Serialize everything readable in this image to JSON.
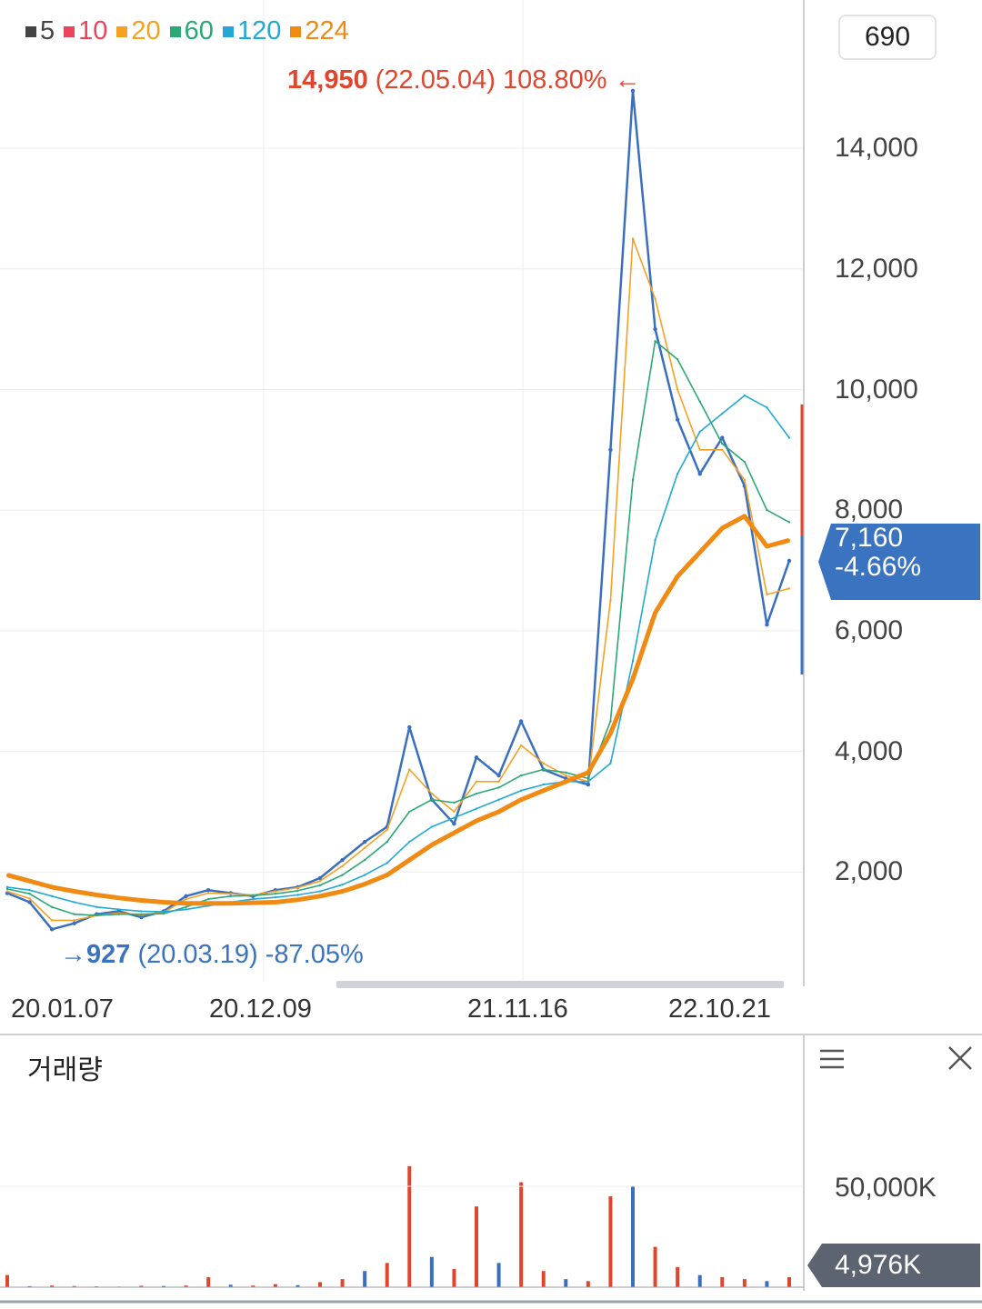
{
  "legend": [
    {
      "label": "5",
      "color": "#444444"
    },
    {
      "label": "10",
      "color": "#e8455a"
    },
    {
      "label": "20",
      "color": "#f5a123"
    },
    {
      "label": "60",
      "color": "#2aa876"
    },
    {
      "label": "120",
      "color": "#22a8d6"
    },
    {
      "label": "224",
      "color": "#f08a12"
    }
  ],
  "count_box": "690",
  "high_annotation": {
    "value": "14,950",
    "date": "(22.05.04)",
    "pct": "108.80%",
    "arrow": "←",
    "color": "#e0452e"
  },
  "low_annotation": {
    "arrow": "→",
    "value": "927",
    "date": "(20.03.19)",
    "pct": "-87.05%",
    "color": "#3a74c1"
  },
  "price_tag": {
    "price": "7,160",
    "change": "-4.66%"
  },
  "volume_panel": {
    "title": "거래량",
    "tick": "50,000K",
    "tag": "4,976K"
  },
  "chart_data": {
    "type": "line",
    "title": "",
    "xlabel": "",
    "ylabel": "",
    "x_tick_labels": [
      "20.01.07",
      "20.12.09",
      "21.11.16",
      "22.10.21"
    ],
    "y_tick_labels": [
      "14,000",
      "12,000",
      "10,000",
      "8,000",
      "6,000",
      "4,000",
      "2,000"
    ],
    "ylim": [
      0,
      15600
    ],
    "grid": true,
    "x": [
      "20.01",
      "20.02",
      "20.03",
      "20.04",
      "20.05",
      "20.06",
      "20.07",
      "20.08",
      "20.09",
      "20.10",
      "20.11",
      "20.12",
      "21.01",
      "21.02",
      "21.03",
      "21.04",
      "21.05",
      "21.06",
      "21.07",
      "21.08",
      "21.09",
      "21.10",
      "21.11",
      "21.12",
      "22.01",
      "22.02",
      "22.03",
      "22.04",
      "22.05",
      "22.06",
      "22.07",
      "22.08",
      "22.09",
      "22.10",
      "22.11",
      "22.12"
    ],
    "series": [
      {
        "name": "5",
        "color": "#3a6fc0",
        "values": [
          1650,
          1500,
          1050,
          1150,
          1300,
          1350,
          1250,
          1350,
          1600,
          1700,
          1650,
          1600,
          1700,
          1750,
          1900,
          2200,
          2500,
          2750,
          4400,
          3200,
          2800,
          3900,
          3600,
          4500,
          3700,
          3550,
          3450,
          9000,
          14950,
          11000,
          9500,
          8600,
          9200,
          8400,
          6100,
          7160
        ]
      },
      {
        "name": "20",
        "color": "#f5a123",
        "values": [
          1680,
          1560,
          1200,
          1200,
          1280,
          1320,
          1290,
          1330,
          1550,
          1650,
          1640,
          1620,
          1680,
          1740,
          1850,
          2100,
          2400,
          2700,
          3700,
          3300,
          3000,
          3500,
          3500,
          4100,
          3800,
          3600,
          3500,
          6500,
          12500,
          11500,
          10000,
          9000,
          9000,
          8500,
          6600,
          6700
        ]
      },
      {
        "name": "60",
        "color": "#2aa876",
        "values": [
          1720,
          1640,
          1420,
          1300,
          1280,
          1300,
          1300,
          1310,
          1420,
          1550,
          1600,
          1610,
          1640,
          1690,
          1780,
          1950,
          2200,
          2500,
          3000,
          3200,
          3150,
          3300,
          3400,
          3600,
          3700,
          3650,
          3550,
          4500,
          8500,
          10800,
          10500,
          9800,
          9100,
          8800,
          8000,
          7800
        ]
      },
      {
        "name": "120",
        "color": "#22a8d6",
        "values": [
          1750,
          1700,
          1600,
          1500,
          1420,
          1380,
          1350,
          1340,
          1380,
          1440,
          1500,
          1550,
          1580,
          1620,
          1680,
          1790,
          1950,
          2150,
          2500,
          2750,
          2900,
          3050,
          3200,
          3350,
          3450,
          3500,
          3500,
          3800,
          5500,
          7500,
          8600,
          9300,
          9600,
          9900,
          9700,
          9200
        ]
      },
      {
        "name": "224",
        "color": "#f08a12",
        "values": [
          1950,
          1850,
          1750,
          1680,
          1620,
          1570,
          1530,
          1500,
          1480,
          1480,
          1480,
          1490,
          1500,
          1540,
          1600,
          1680,
          1800,
          1950,
          2200,
          2450,
          2650,
          2850,
          3000,
          3200,
          3350,
          3500,
          3650,
          4300,
          5200,
          6300,
          6900,
          7300,
          7700,
          7900,
          7400,
          7500
        ]
      }
    ],
    "volume": {
      "ylabel": "",
      "tick_labels": [
        "50,000K"
      ],
      "values_k": [
        6000,
        500,
        800,
        600,
        400,
        300,
        700,
        600,
        800,
        5000,
        1200,
        800,
        1500,
        1000,
        2500,
        4000,
        8000,
        12000,
        60000,
        15000,
        9000,
        40000,
        12000,
        52000,
        8000,
        4000,
        3000,
        45000,
        50000,
        20000,
        10000,
        6000,
        5000,
        4000,
        3000,
        4976
      ]
    }
  }
}
